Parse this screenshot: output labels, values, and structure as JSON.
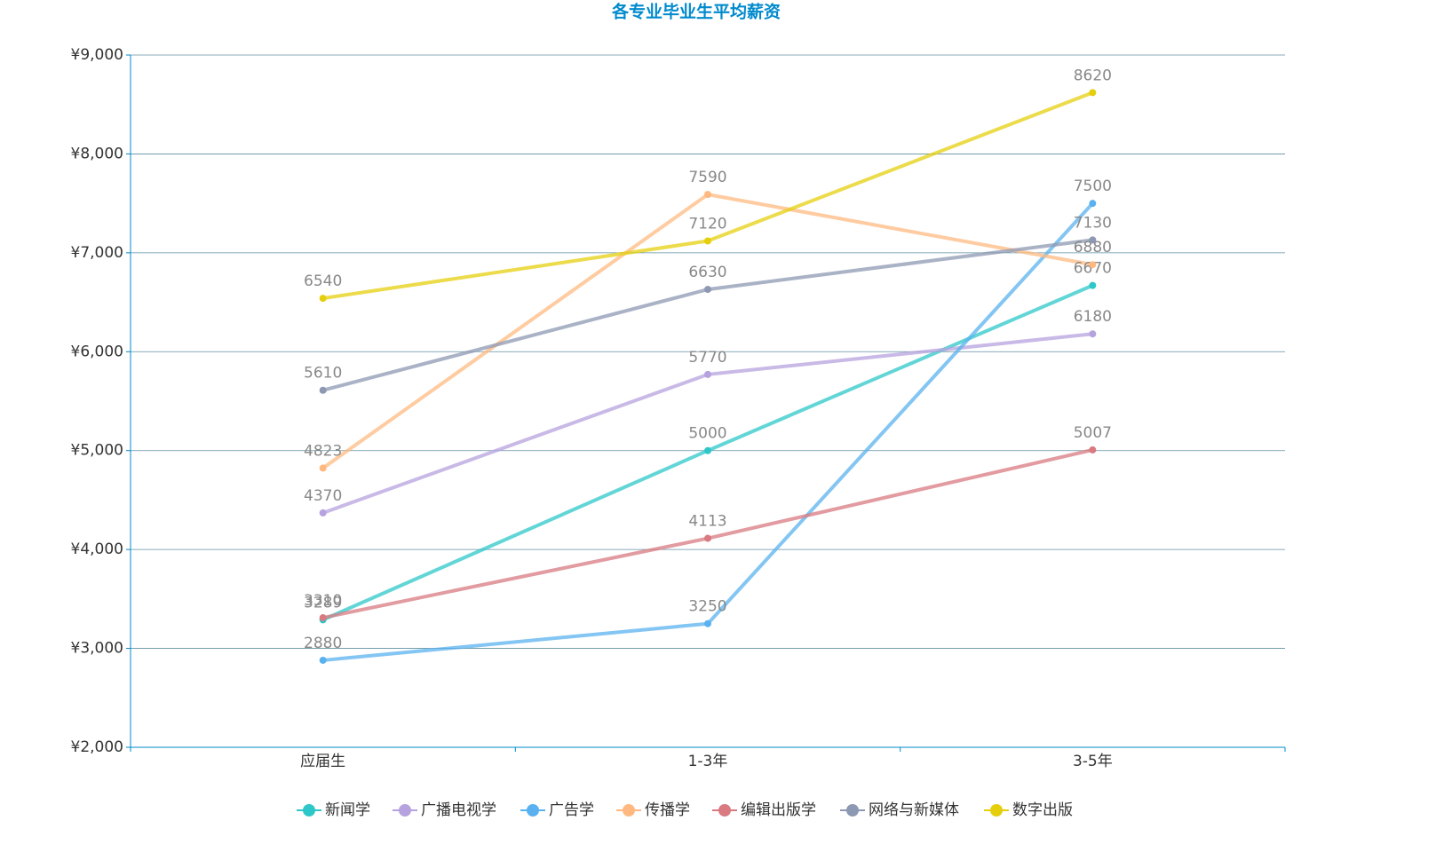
{
  "chart_data": {
    "type": "line",
    "title": "各专业毕业生平均薪资",
    "categories": [
      "应届生",
      "1-3年",
      "3-5年"
    ],
    "series": [
      {
        "name": "新闻学",
        "color": "#2ec7c9",
        "values": [
          3289,
          5000,
          6670
        ]
      },
      {
        "name": "广播电视学",
        "color": "#b6a2de",
        "values": [
          4370,
          5770,
          6180
        ]
      },
      {
        "name": "广告学",
        "color": "#5ab1ef",
        "values": [
          2880,
          3250,
          7500
        ]
      },
      {
        "name": "传播学",
        "color": "#ffb980",
        "values": [
          4823,
          7590,
          6880
        ]
      },
      {
        "name": "编辑出版学",
        "color": "#d87a80",
        "values": [
          3310,
          4113,
          5007
        ]
      },
      {
        "name": "网络与新媒体",
        "color": "#8d98b3",
        "values": [
          5610,
          6630,
          7130
        ]
      },
      {
        "name": "数字出版",
        "color": "#e5cf0d",
        "values": [
          6540,
          7120,
          8620
        ]
      }
    ],
    "ylim": [
      2000,
      9000
    ],
    "yticks": [
      {
        "value": 2000,
        "label": "¥2,000"
      },
      {
        "value": 3000,
        "label": "¥3,000"
      },
      {
        "value": 4000,
        "label": "¥4,000"
      },
      {
        "value": 5000,
        "label": "¥5,000"
      },
      {
        "value": 6000,
        "label": "¥6,000"
      },
      {
        "value": 7000,
        "label": "¥7,000"
      },
      {
        "value": 8000,
        "label": "¥8,000"
      },
      {
        "value": 9000,
        "label": "¥9,000"
      }
    ],
    "grid": true,
    "legend": "bottom"
  }
}
